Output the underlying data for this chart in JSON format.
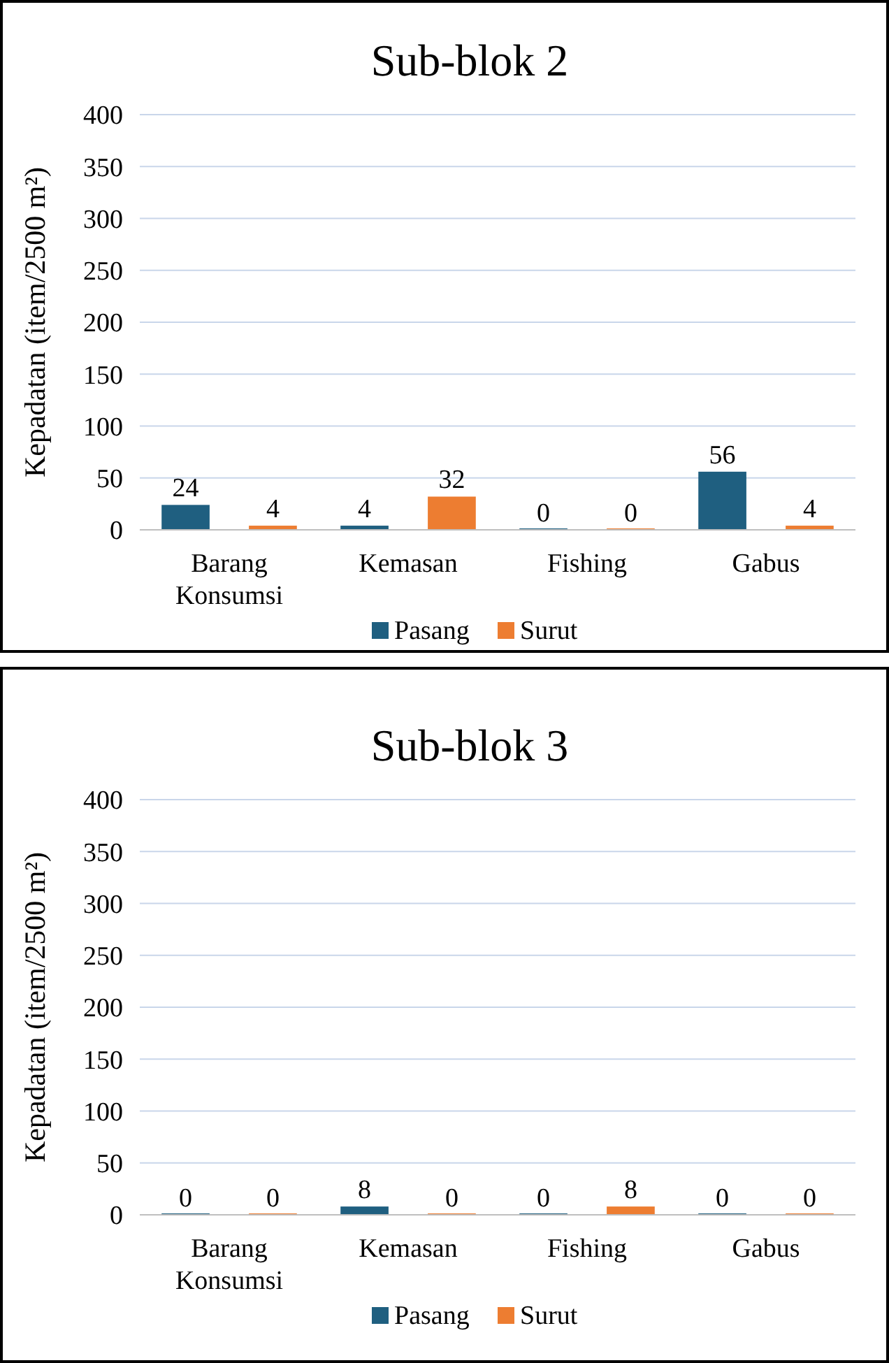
{
  "chart_data": [
    {
      "type": "bar",
      "title": "Sub-blok 2",
      "ylabel": "Kepadatan (item/2500 m²)",
      "categories": [
        "Barang Konsumsi",
        "Kemasan",
        "Fishing",
        "Gabus"
      ],
      "series": [
        {
          "name": "Pasang",
          "color": "#1f5f80",
          "values": [
            24,
            4,
            0,
            56
          ]
        },
        {
          "name": "Surut",
          "color": "#ed7d31",
          "values": [
            4,
            32,
            0,
            4
          ]
        }
      ],
      "ylim": [
        0,
        400
      ],
      "yticks": [
        0,
        50,
        100,
        150,
        200,
        250,
        300,
        350,
        400
      ],
      "grid": "y",
      "legend": "bottom",
      "data_labels": true
    },
    {
      "type": "bar",
      "title": "Sub-blok 3",
      "ylabel": "Kepadatan (item/2500 m²)",
      "categories": [
        "Barang Konsumsi",
        "Kemasan",
        "Fishing",
        "Gabus"
      ],
      "series": [
        {
          "name": "Pasang",
          "color": "#1f5f80",
          "values": [
            0,
            8,
            0,
            0
          ]
        },
        {
          "name": "Surut",
          "color": "#ed7d31",
          "values": [
            0,
            0,
            8,
            0
          ]
        }
      ],
      "ylim": [
        0,
        400
      ],
      "yticks": [
        0,
        50,
        100,
        150,
        200,
        250,
        300,
        350,
        400
      ],
      "grid": "y",
      "legend": "bottom",
      "data_labels": true
    }
  ]
}
